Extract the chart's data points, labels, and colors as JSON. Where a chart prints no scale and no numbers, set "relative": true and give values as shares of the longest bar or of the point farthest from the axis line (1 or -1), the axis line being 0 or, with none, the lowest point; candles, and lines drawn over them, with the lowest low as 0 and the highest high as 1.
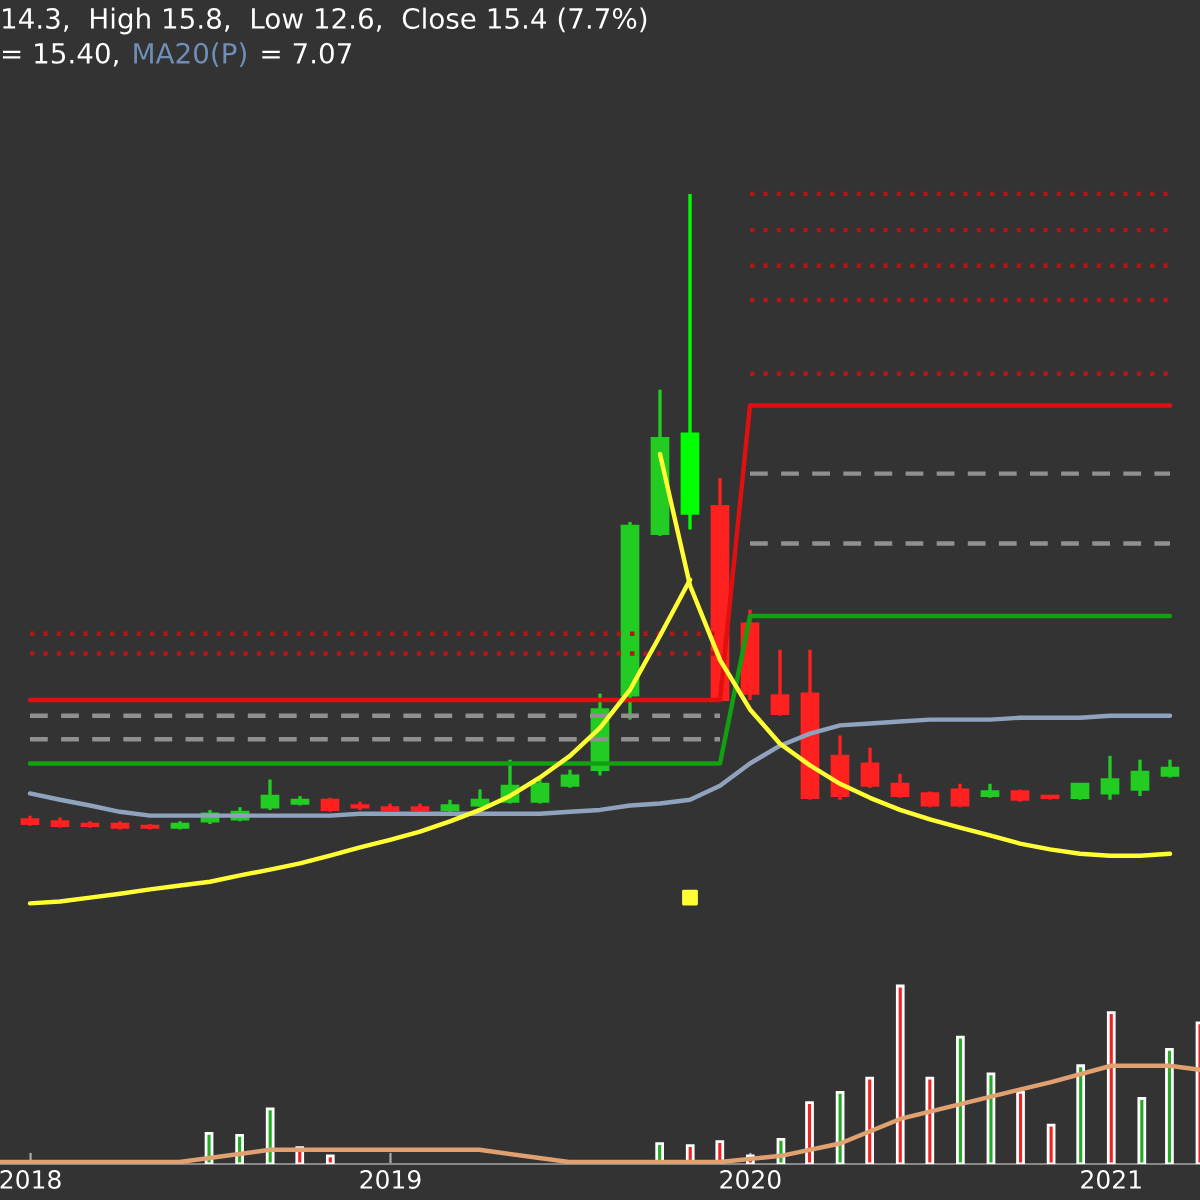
{
  "chart_data": [
    {
      "type": "candlestick",
      "relative": true,
      "tick_labels": false,
      "grid": false,
      "annotations": [
        "14.3,  High 15.8,  Low 12.6,  Close 15.4 (7.7%)",
        "= 15.40,",
        "MA20(P)",
        "= 7.07"
      ],
      "categories": [
        null,
        null,
        null,
        null,
        null,
        null,
        null,
        null,
        null,
        null,
        null,
        null,
        null,
        null,
        null,
        null,
        null,
        null,
        null,
        null,
        null,
        null,
        null,
        null,
        null,
        null,
        null,
        null,
        null,
        null,
        null,
        null,
        null,
        null,
        null,
        null,
        null,
        null,
        null
      ],
      "ohlc": [
        [
          0.016,
          0.022,
          0.006,
          0.009
        ],
        [
          0.013,
          0.019,
          0.003,
          0.006
        ],
        [
          0.009,
          0.013,
          0.003,
          0.006
        ],
        [
          0.009,
          0.013,
          0,
          0.003
        ],
        [
          0.006,
          0.009,
          0,
          0.003
        ],
        [
          0.003,
          0.013,
          0,
          0.009
        ],
        [
          0.013,
          0.031,
          0.009,
          0.025
        ],
        [
          0.016,
          0.035,
          0.013,
          0.028
        ],
        [
          0.035,
          0.079,
          0.031,
          0.053
        ],
        [
          0.041,
          0.053,
          0.038,
          0.047
        ],
        [
          0.047,
          0.05,
          0.028,
          0.031
        ],
        [
          0.038,
          0.044,
          0.031,
          0.035
        ],
        [
          0.035,
          0.041,
          0.031,
          0.031
        ],
        [
          0.035,
          0.041,
          0.028,
          0.031
        ],
        [
          0.031,
          0.047,
          0.028,
          0.038
        ],
        [
          0.038,
          0.063,
          0.035,
          0.047
        ],
        [
          0.044,
          0.11,
          0.041,
          0.069
        ],
        [
          0.044,
          0.079,
          0.041,
          0.072
        ],
        [
          0.069,
          0.094,
          0.066,
          0.085
        ],
        [
          0.094,
          0.214,
          0.085,
          0.189
        ],
        [
          0.211,
          0.484,
          0.173,
          0.478
        ],
        [
          0.465,
          0.692,
          0.462,
          0.616
        ],
        [
          0.497,
          1.0,
          0.472,
          0.623
        ],
        [
          0.509,
          0.553,
          0.204,
          0.204
        ],
        [
          0.324,
          0.346,
          0.204,
          0.214
        ],
        [
          0.211,
          0.283,
          0.179,
          0.182
        ],
        [
          0.214,
          0.283,
          0.047,
          0.05
        ],
        [
          0.116,
          0.148,
          0.047,
          0.053
        ],
        [
          0.104,
          0.129,
          0.066,
          0.069
        ],
        [
          0.072,
          0.088,
          0.05,
          0.053
        ],
        [
          0.057,
          0.06,
          0.035,
          0.038
        ],
        [
          0.063,
          0.072,
          0.035,
          0.038
        ],
        [
          0.053,
          0.072,
          0.05,
          0.06
        ],
        [
          0.06,
          0.063,
          0.044,
          0.047
        ],
        [
          0.053,
          0.053,
          0.047,
          0.05
        ],
        [
          0.05,
          0.072,
          0.047,
          0.072
        ],
        [
          0.057,
          0.116,
          0.047,
          0.079
        ],
        [
          0.063,
          0.11,
          0.053,
          0.091
        ],
        [
          0.085,
          0.11,
          0.082,
          0.097
        ]
      ],
      "colors": [
        "#ff2020",
        "#ff2020",
        "#ff2020",
        "#ff2020",
        "#ff2020",
        "#22cc22",
        "#22cc22",
        "#22cc22",
        "#22cc22",
        "#22cc22",
        "#ff2020",
        "#ff2020",
        "#ff2020",
        "#ff2020",
        "#22cc22",
        "#22cc22",
        "#22cc22",
        "#22cc22",
        "#22cc22",
        "#22cc22",
        "#22cc22",
        "#22cc22",
        "#00ff00",
        "#ff2020",
        "#ff2020",
        "#ff2020",
        "#ff2020",
        "#ff2020",
        "#ff2020",
        "#ff2020",
        "#ff2020",
        "#ff2020",
        "#22cc22",
        "#ff2020",
        "#ff2020",
        "#22cc22",
        "#22cc22",
        "#22cc22",
        "#22cc22"
      ],
      "series": [
        {
          "type": "line",
          "line_style": "dotted",
          "color": "#b01818",
          "values": [
            null,
            null,
            null,
            null,
            null,
            null,
            null,
            null,
            null,
            null,
            null,
            null,
            null,
            null,
            null,
            null,
            null,
            null,
            null,
            null,
            null,
            null,
            null,
            null,
            1.0,
            1.0,
            1.0,
            1.0,
            1.0,
            1.0,
            1.0,
            1.0,
            1.0,
            1.0,
            1.0,
            1.0,
            1.0,
            1.0,
            1.0
          ]
        },
        {
          "type": "line",
          "line_style": "dotted",
          "color": "#b01818",
          "values": [
            null,
            null,
            null,
            null,
            null,
            null,
            null,
            null,
            null,
            null,
            null,
            null,
            null,
            null,
            null,
            null,
            null,
            null,
            null,
            null,
            null,
            null,
            null,
            null,
            0.943,
            0.943,
            0.943,
            0.943,
            0.943,
            0.943,
            0.943,
            0.943,
            0.943,
            0.943,
            0.943,
            0.943,
            0.943,
            0.943,
            0.943
          ]
        },
        {
          "type": "line",
          "line_style": "dotted",
          "color": "#b01818",
          "values": [
            null,
            null,
            null,
            null,
            null,
            null,
            null,
            null,
            null,
            null,
            null,
            null,
            null,
            null,
            null,
            null,
            null,
            null,
            null,
            null,
            null,
            null,
            null,
            null,
            0.887,
            0.887,
            0.887,
            0.887,
            0.887,
            0.887,
            0.887,
            0.887,
            0.887,
            0.887,
            0.887,
            0.887,
            0.887,
            0.887,
            0.887
          ]
        },
        {
          "type": "line",
          "line_style": "dotted",
          "color": "#b01818",
          "values": [
            null,
            null,
            null,
            null,
            null,
            null,
            null,
            null,
            null,
            null,
            null,
            null,
            null,
            null,
            null,
            null,
            null,
            null,
            null,
            null,
            null,
            null,
            null,
            null,
            0.833,
            0.833,
            0.833,
            0.833,
            0.833,
            0.833,
            0.833,
            0.833,
            0.833,
            0.833,
            0.833,
            0.833,
            0.833,
            0.833,
            0.833
          ]
        },
        {
          "type": "line",
          "line_style": "dotted",
          "color": "#b01818",
          "values": [
            null,
            null,
            null,
            null,
            null,
            null,
            null,
            null,
            null,
            null,
            null,
            null,
            null,
            null,
            null,
            null,
            null,
            null,
            null,
            null,
            null,
            null,
            null,
            null,
            0.717,
            0.717,
            0.717,
            0.717,
            0.717,
            0.717,
            0.717,
            0.717,
            0.717,
            0.717,
            0.717,
            0.717,
            0.717,
            0.717,
            0.717
          ]
        },
        {
          "type": "line",
          "line_style": "dashed",
          "color": "#909090",
          "values": [
            null,
            null,
            null,
            null,
            null,
            null,
            null,
            null,
            null,
            null,
            null,
            null,
            null,
            null,
            null,
            null,
            null,
            null,
            null,
            null,
            null,
            null,
            null,
            null,
            0.56,
            0.56,
            0.56,
            0.56,
            0.56,
            0.56,
            0.56,
            0.56,
            0.56,
            0.56,
            0.56,
            0.56,
            0.56,
            0.56,
            0.56
          ]
        },
        {
          "type": "line",
          "line_style": "dashed",
          "color": "#909090",
          "values": [
            null,
            null,
            null,
            null,
            null,
            null,
            null,
            null,
            null,
            null,
            null,
            null,
            null,
            null,
            null,
            null,
            null,
            null,
            null,
            null,
            null,
            null,
            null,
            null,
            0.45,
            0.45,
            0.45,
            0.45,
            0.45,
            0.45,
            0.45,
            0.45,
            0.45,
            0.45,
            0.45,
            0.45,
            0.45,
            0.45,
            0.45
          ]
        },
        {
          "type": "line",
          "line_style": "dotted",
          "color": "#b01818",
          "values": [
            0.308,
            0.308,
            0.308,
            0.308,
            0.308,
            0.308,
            0.308,
            0.308,
            0.308,
            0.308,
            0.308,
            0.308,
            0.308,
            0.308,
            0.308,
            0.308,
            0.308,
            0.308,
            0.308,
            0.308,
            0.308,
            0.308,
            0.308,
            0.308,
            null,
            null,
            null,
            null,
            null,
            null,
            null,
            null,
            null,
            null,
            null,
            null,
            null,
            null,
            null
          ]
        },
        {
          "type": "line",
          "line_style": "dotted",
          "color": "#b01818",
          "values": [
            0.277,
            0.277,
            0.277,
            0.277,
            0.277,
            0.277,
            0.277,
            0.277,
            0.277,
            0.277,
            0.277,
            0.277,
            0.277,
            0.277,
            0.277,
            0.277,
            0.277,
            0.277,
            0.277,
            0.277,
            0.277,
            0.277,
            0.277,
            0.277,
            null,
            null,
            null,
            null,
            null,
            null,
            null,
            null,
            null,
            null,
            null,
            null,
            null,
            null,
            null
          ]
        },
        {
          "type": "line",
          "line_style": "dashed",
          "color": "#909090",
          "values": [
            0.179,
            0.179,
            0.179,
            0.179,
            0.179,
            0.179,
            0.179,
            0.179,
            0.179,
            0.179,
            0.179,
            0.179,
            0.179,
            0.179,
            0.179,
            0.179,
            0.179,
            0.179,
            0.179,
            0.179,
            0.179,
            0.179,
            0.179,
            0.179,
            null,
            null,
            null,
            null,
            null,
            null,
            null,
            null,
            null,
            null,
            null,
            null,
            null,
            null,
            null
          ]
        },
        {
          "type": "line",
          "line_style": "dashed",
          "color": "#909090",
          "values": [
            0.142,
            0.142,
            0.142,
            0.142,
            0.142,
            0.142,
            0.142,
            0.142,
            0.142,
            0.142,
            0.142,
            0.142,
            0.142,
            0.142,
            0.142,
            0.142,
            0.142,
            0.142,
            0.142,
            0.142,
            0.142,
            0.142,
            0.142,
            0.142,
            null,
            null,
            null,
            null,
            null,
            null,
            null,
            null,
            null,
            null,
            null,
            null,
            null,
            null,
            null
          ]
        },
        {
          "type": "line",
          "line_style": "solid",
          "color": "#e01010",
          "values": [
            0.204,
            0.204,
            0.204,
            0.204,
            0.204,
            0.204,
            0.204,
            0.204,
            0.204,
            0.204,
            0.204,
            0.204,
            0.204,
            0.204,
            0.204,
            0.204,
            0.204,
            0.204,
            0.204,
            0.204,
            0.204,
            0.204,
            0.204,
            0.204,
            0.667,
            0.667,
            0.667,
            0.667,
            0.667,
            0.667,
            0.667,
            0.667,
            0.667,
            0.667,
            0.667,
            0.667,
            0.667,
            0.667,
            0.667
          ]
        },
        {
          "type": "line",
          "line_style": "solid",
          "color": "#10a010",
          "values": [
            0.104,
            0.104,
            0.104,
            0.104,
            0.104,
            0.104,
            0.104,
            0.104,
            0.104,
            0.104,
            0.104,
            0.104,
            0.104,
            0.104,
            0.104,
            0.104,
            0.104,
            0.104,
            0.104,
            0.104,
            0.104,
            0.104,
            0.104,
            0.104,
            0.336,
            0.336,
            0.336,
            0.336,
            0.336,
            0.336,
            0.336,
            0.336,
            0.336,
            0.336,
            0.336,
            0.336,
            0.336,
            0.336,
            0.336
          ]
        },
        {
          "type": "line",
          "line_style": "solid",
          "color": "#8fa3bf",
          "values": [
            0.057,
            0.047,
            0.038,
            0.028,
            0.022,
            0.022,
            0.022,
            0.022,
            0.022,
            0.022,
            0.022,
            0.025,
            0.025,
            0.025,
            0.025,
            0.025,
            0.025,
            0.025,
            0.028,
            0.031,
            0.038,
            0.041,
            0.047,
            0.069,
            0.104,
            0.132,
            0.151,
            0.164,
            0.167,
            0.17,
            0.173,
            0.173,
            0.173,
            0.176,
            0.176,
            0.176,
            0.179,
            0.179,
            0.179
          ]
        },
        {
          "type": "line",
          "line_style": "solid",
          "color": "#ffff33",
          "values": [
            -0.116,
            -0.113,
            -0.107,
            -0.101,
            -0.094,
            -0.088,
            -0.082,
            -0.072,
            -0.063,
            -0.053,
            -0.041,
            -0.028,
            -0.016,
            -0.003,
            0.013,
            0.031,
            0.053,
            0.082,
            0.116,
            0.16,
            0.22,
            0.305,
            0.393,
            null,
            null,
            null,
            null,
            null,
            null,
            null,
            null,
            null,
            null,
            null,
            null,
            null,
            null,
            null,
            null
          ]
        },
        {
          "type": "line",
          "line_style": "solid",
          "color": "#ffff33",
          "values": [
            null,
            null,
            null,
            null,
            null,
            null,
            null,
            null,
            null,
            null,
            null,
            null,
            null,
            null,
            null,
            null,
            null,
            null,
            null,
            null,
            null,
            0.591,
            0.384,
            0.267,
            0.189,
            0.135,
            0.101,
            0.072,
            0.05,
            0.031,
            0.016,
            0.003,
            -0.009,
            -0.022,
            -0.031,
            -0.038,
            -0.041,
            -0.041,
            -0.038
          ]
        }
      ]
    },
    {
      "type": "bar",
      "relative": true,
      "tick_labels": "x",
      "grid": false,
      "x": [
        "2018-07",
        "2018-08",
        "2018-09",
        "2018-10",
        "2018-11",
        "2019-10",
        "2019-11",
        "2019-12",
        "2020-01",
        "2020-02",
        "2020-03",
        "2020-04",
        "2020-05",
        "2020-06",
        "2020-07",
        "2020-08",
        "2020-09",
        "2020-10",
        "2020-11",
        "2020-12",
        "2021-01",
        "2021-02",
        "2021-03",
        "2021-04"
      ],
      "values": [
        0.172,
        0.161,
        0.31,
        0.092,
        0.046,
        0.115,
        0.103,
        0.126,
        0.046,
        0.138,
        0.345,
        0.402,
        0.483,
        1.0,
        0.483,
        0.713,
        0.506,
        0.402,
        0.218,
        0.552,
        0.851,
        0.368,
        0.644,
        0.793
      ],
      "colors": [
        "#22aa22",
        "#22aa22",
        "#22aa22",
        "#ee2222",
        "#ee2222",
        "#22aa22",
        "#ee2222",
        "#ee2222",
        "#ee2222",
        "#22aa22",
        "#ee2222",
        "#22aa22",
        "#ee2222",
        "#ee2222",
        "#ee2222",
        "#22aa22",
        "#22aa22",
        "#ee2222",
        "#ee2222",
        "#22aa22",
        "#ee2222",
        "#22aa22",
        "#22aa22",
        "#ee2222"
      ],
      "xlim": [
        "2017-12",
        "2021-04"
      ],
      "xticks": [
        {
          "value": "2018-01",
          "label": "2018"
        },
        {
          "value": "2019-01",
          "label": "2019"
        },
        {
          "value": "2020-01",
          "label": "2020"
        },
        {
          "value": "2021-01",
          "label": "2021"
        }
      ],
      "series": [
        {
          "type": "line",
          "line_style": "solid",
          "color": "#e0a070",
          "x": [
            "2017-12",
            "2018-06",
            "2018-09",
            "2019-02",
            "2019-04",
            "2019-07",
            "2019-12",
            "2020-02",
            "2020-04",
            "2020-06",
            "2020-09",
            "2020-11",
            "2021-01",
            "2021-03",
            "2021-04"
          ],
          "values": [
            0.011,
            0.011,
            0.08,
            0.08,
            0.08,
            0.011,
            0.011,
            0.046,
            0.115,
            0.253,
            0.379,
            0.46,
            0.552,
            0.552,
            0.529
          ]
        }
      ]
    }
  ]
}
